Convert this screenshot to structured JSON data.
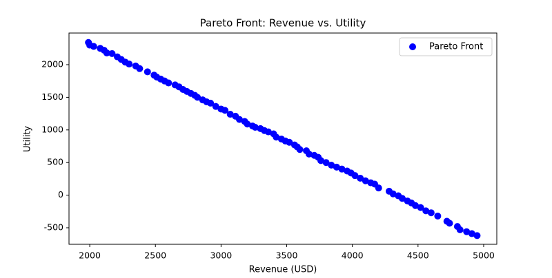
{
  "chart_data": {
    "type": "scatter",
    "title": "Pareto Front: Revenue vs. Utility",
    "x_label": "Revenue (USD)",
    "y_label": "Utility",
    "xlim": [
      1842,
      5100
    ],
    "ylim": [
      -753,
      2485
    ],
    "xticks": [
      2000,
      2500,
      3000,
      3500,
      4000,
      4500,
      5000
    ],
    "yticks": [
      -500,
      0,
      500,
      1000,
      1500,
      2000
    ],
    "legend": "upper right",
    "series": [
      {
        "name": "Pareto Front",
        "color": "#0000ff",
        "x": [
          1990,
          2000,
          2030,
          2080,
          2110,
          2130,
          2170,
          2210,
          2240,
          2270,
          2300,
          2350,
          2380,
          2440,
          2490,
          2510,
          2540,
          2570,
          2600,
          2650,
          2680,
          2710,
          2740,
          2770,
          2800,
          2820,
          2860,
          2890,
          2920,
          2960,
          3000,
          3030,
          3070,
          3110,
          3140,
          3180,
          3200,
          3240,
          3260,
          3300,
          3330,
          3360,
          3400,
          3420,
          3460,
          3490,
          3520,
          3560,
          3580,
          3600,
          3650,
          3670,
          3710,
          3740,
          3760,
          3800,
          3840,
          3880,
          3920,
          3960,
          3990,
          4020,
          4060,
          4100,
          4140,
          4170,
          4200,
          4280,
          4310,
          4350,
          4380,
          4420,
          4450,
          4480,
          4520,
          4560,
          4600,
          4650,
          4720,
          4740,
          4800,
          4820,
          4870,
          4910,
          4950
        ],
        "values": [
          2340,
          2300,
          2280,
          2250,
          2220,
          2180,
          2170,
          2120,
          2080,
          2040,
          2010,
          1980,
          1940,
          1890,
          1840,
          1810,
          1780,
          1750,
          1720,
          1690,
          1660,
          1620,
          1590,
          1560,
          1530,
          1500,
          1460,
          1430,
          1410,
          1360,
          1320,
          1300,
          1240,
          1210,
          1160,
          1130,
          1090,
          1060,
          1040,
          1020,
          990,
          970,
          940,
          890,
          860,
          830,
          810,
          770,
          740,
          700,
          680,
          630,
          610,
          580,
          530,
          500,
          460,
          430,
          400,
          370,
          340,
          300,
          260,
          220,
          190,
          170,
          110,
          60,
          20,
          -10,
          -50,
          -90,
          -120,
          -160,
          -190,
          -240,
          -270,
          -320,
          -400,
          -430,
          -480,
          -530,
          -560,
          -590,
          -620
        ]
      }
    ]
  }
}
